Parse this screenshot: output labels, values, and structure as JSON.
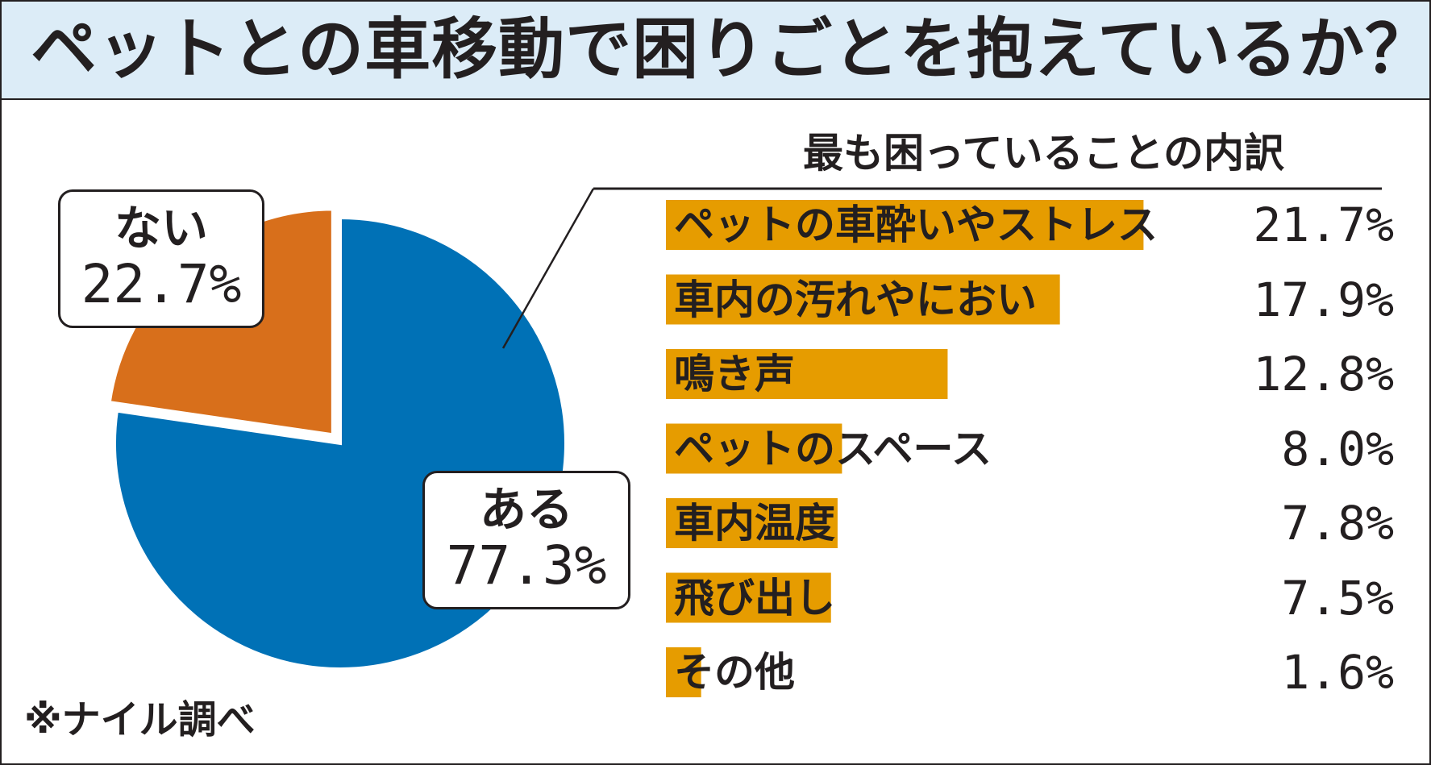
{
  "header": {
    "title": "ペットとの車移動で困りごとを抱えているか？"
  },
  "source_note": "※ナイル調べ",
  "colors": {
    "title_background": "#dcecf7",
    "aru": "#0071b6",
    "nai": "#d86f1b",
    "bar": "#e69c00",
    "text": "#231f20"
  },
  "chart_data": [
    {
      "type": "pie",
      "slices": [
        {
          "label": "ある",
          "value": 77.3,
          "value_text": "77.3%",
          "color": "#0071b6"
        },
        {
          "label": "ない",
          "value": 22.7,
          "value_text": "22.7%",
          "color": "#d86f1b"
        }
      ]
    },
    {
      "type": "bar",
      "orientation": "horizontal",
      "title": "最も困っていることの内訳",
      "categories": [
        "ペットの車酔いやストレス",
        "車内の汚れやにおい",
        "鳴き声",
        "ペットのスペース",
        "車内温度",
        "飛び出し",
        "その他"
      ],
      "values": [
        21.7,
        17.9,
        12.8,
        8.0,
        7.8,
        7.5,
        1.6
      ],
      "value_labels": [
        "21.7%",
        "17.9%",
        "12.8%",
        "8.0%",
        "7.8%",
        "7.5%",
        "1.6%"
      ],
      "unit": "%",
      "color": "#e69c00"
    }
  ]
}
